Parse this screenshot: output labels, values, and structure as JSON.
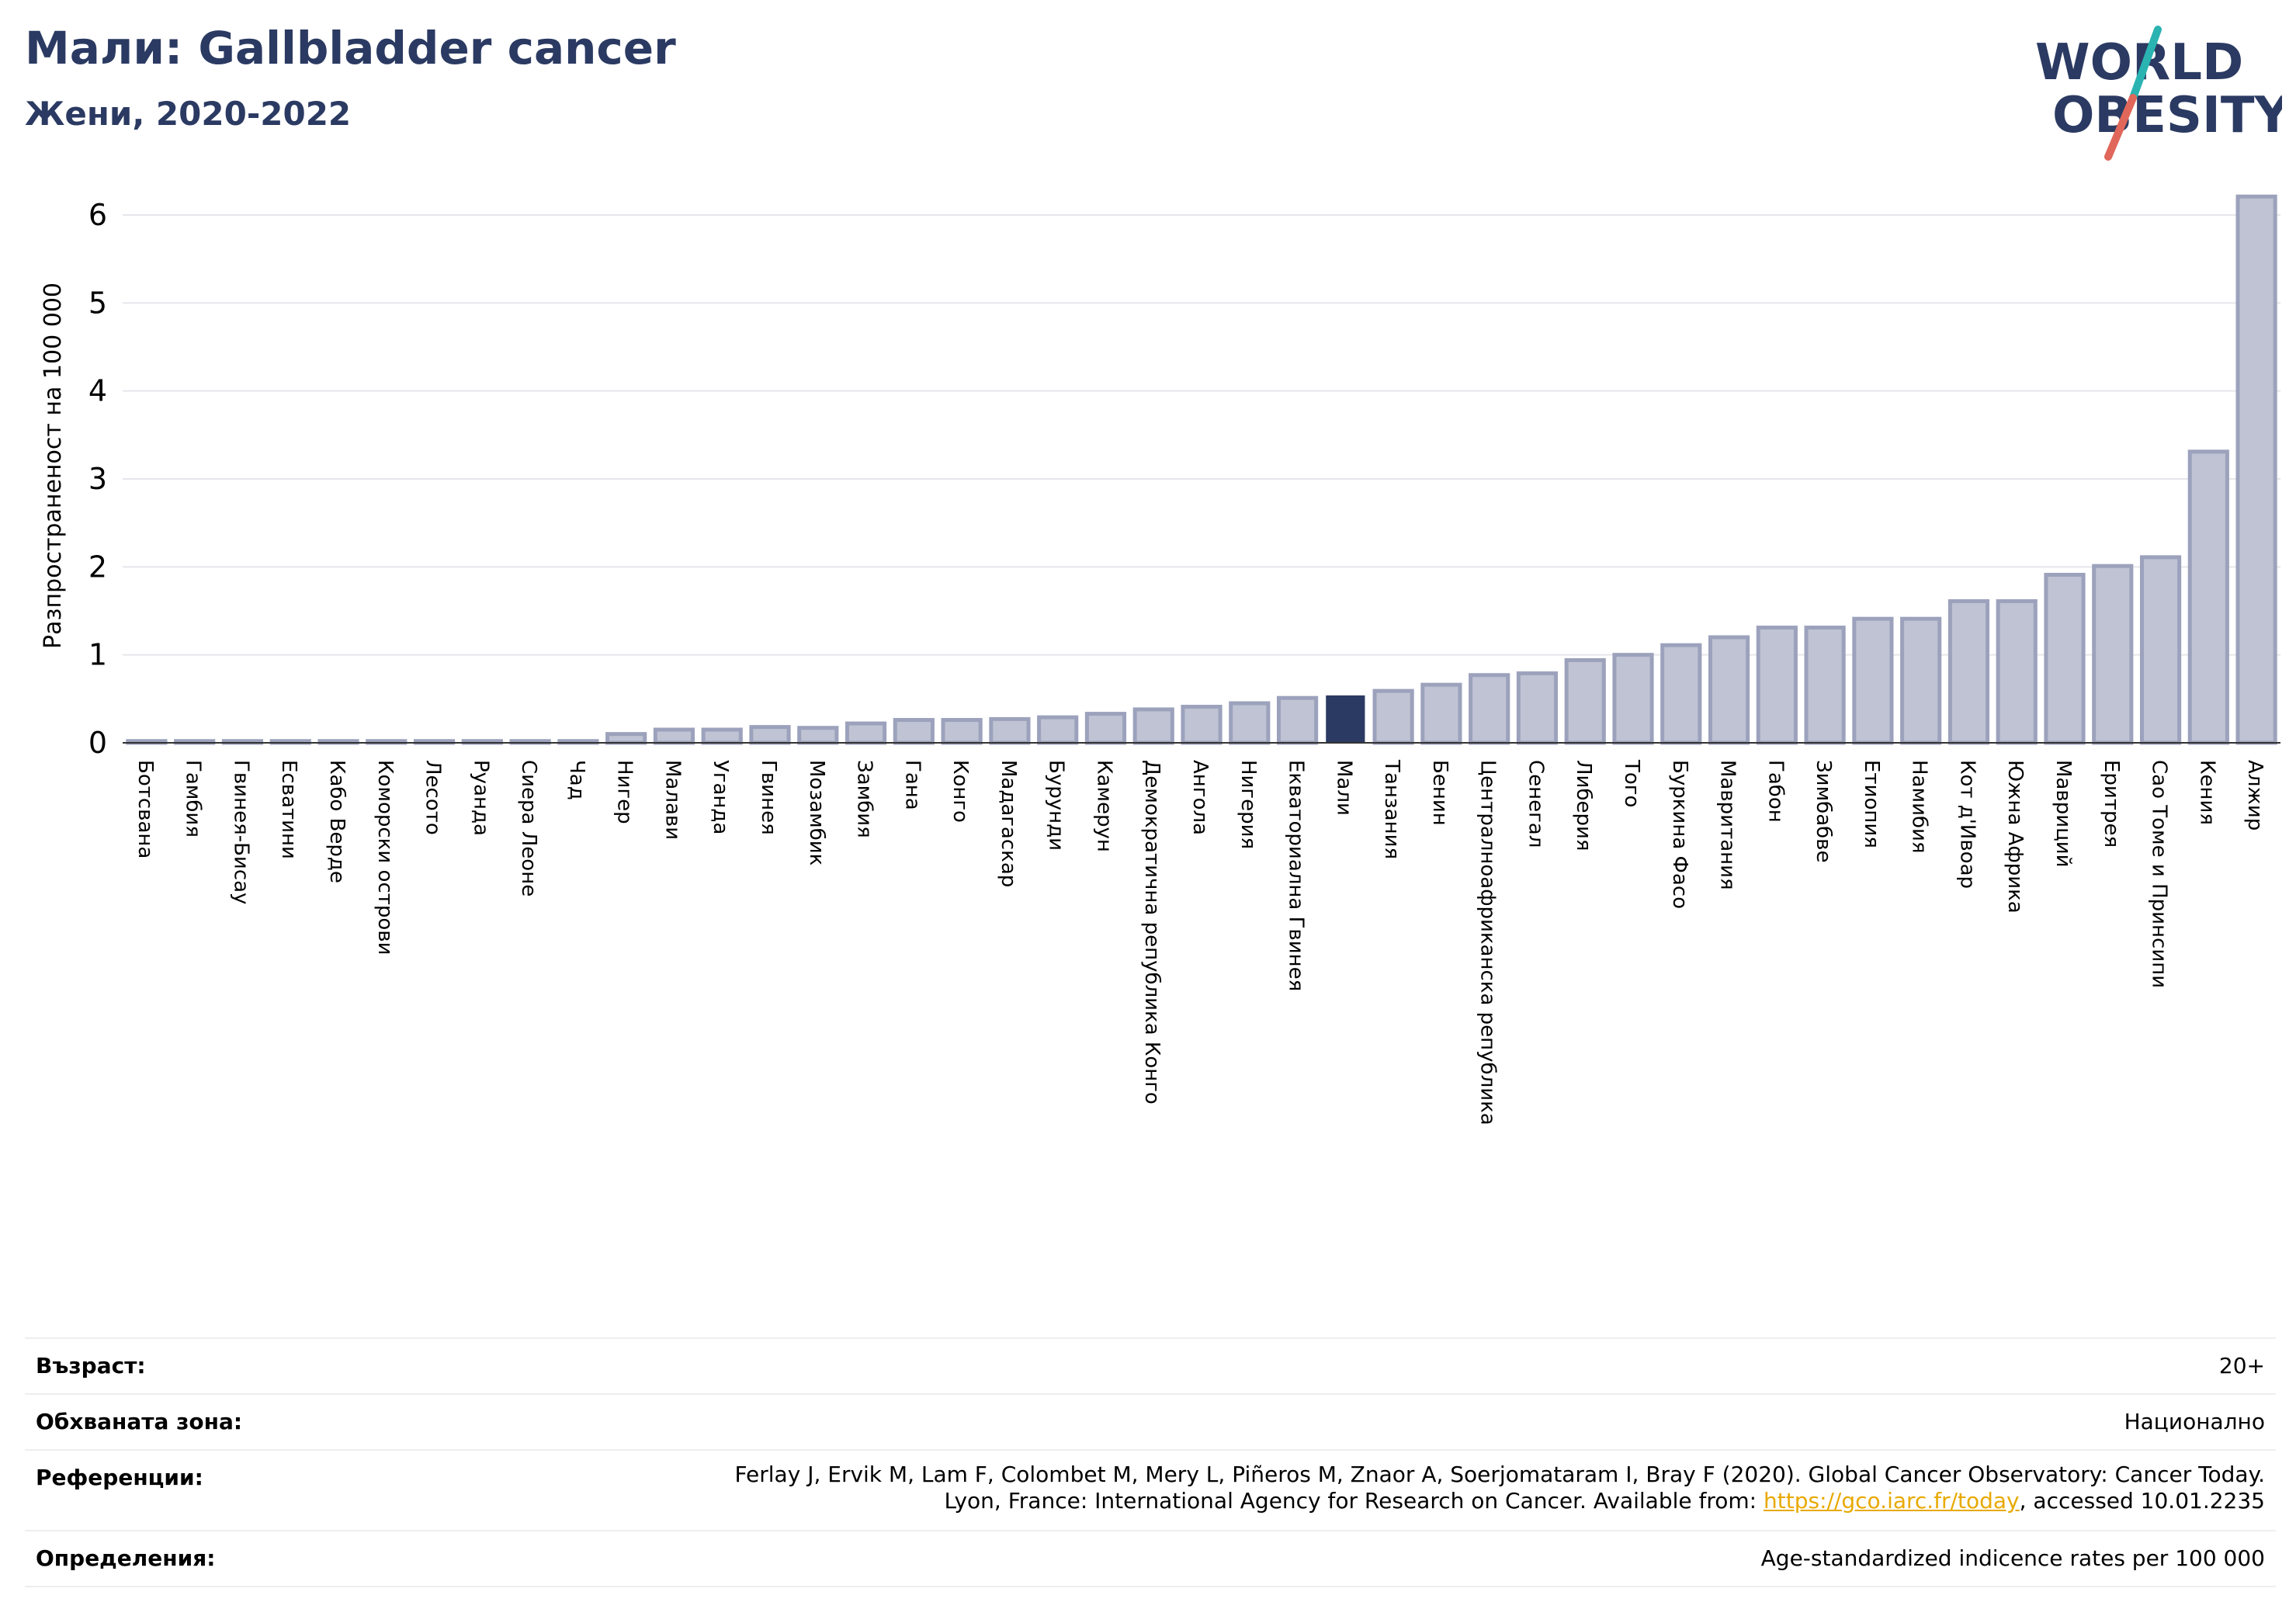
{
  "header": {
    "title": "Мали: Gallbladder cancer",
    "subtitle": "Жени, 2020-2022"
  },
  "logo": {
    "line1": "WORLD",
    "line2": "OBESITY",
    "colors": {
      "text": "#2b3a62",
      "slash_teal": "#2ab3b1",
      "slash_red": "#e0675a"
    }
  },
  "chart_data": {
    "type": "bar",
    "ylabel": "Разпространеност  на 100 000",
    "ylim": [
      0,
      6.3
    ],
    "yticks": [
      0,
      1,
      2,
      3,
      4,
      5,
      6
    ],
    "grid": true,
    "highlight": "Мали",
    "colors": {
      "bar": "#bfc3d3",
      "bar_edge": "#9ca2bc",
      "highlight": "#2b3a62"
    },
    "categories": [
      "Ботсвана",
      "Гамбия",
      "Гвинея-Бисау",
      "Есватини",
      "Кабо Верде",
      "Коморски острови",
      "Лесото",
      "Руанда",
      "Сиера Леоне",
      "Чад",
      "Нигер",
      "Малави",
      "Уганда",
      "Гвинея",
      "Мозамбик",
      "Замбия",
      "Гана",
      "Конго",
      "Мадагаскар",
      "Бурунди",
      "Камерун",
      "Демократична република Конго",
      "Ангола",
      "Нигерия",
      "Екваториална Гвинея",
      "Мали",
      "Танзания",
      "Бенин",
      "Централноафриканска република",
      "Сенегал",
      "Либерия",
      "Того",
      "Буркина Фасо",
      "Мавритания",
      "Габон",
      "Зимбабве",
      "Етиопия",
      "Намибия",
      "Кот д'Ивоар",
      "Южна Африка",
      "Мавриций",
      "Еритрея",
      "Сао Томе и Принсипи",
      "Кения",
      "Алжир"
    ],
    "values": [
      0.02,
      0.02,
      0.02,
      0.02,
      0.02,
      0.02,
      0.02,
      0.02,
      0.02,
      0.02,
      0.1,
      0.15,
      0.15,
      0.18,
      0.17,
      0.22,
      0.26,
      0.26,
      0.27,
      0.29,
      0.33,
      0.38,
      0.41,
      0.45,
      0.51,
      0.53,
      0.59,
      0.66,
      0.77,
      0.79,
      0.94,
      1.0,
      1.11,
      1.2,
      1.31,
      1.31,
      1.41,
      1.41,
      1.61,
      1.61,
      1.91,
      2.01,
      2.11,
      3.31,
      6.21
    ]
  },
  "meta": {
    "age_label": "Възраст:",
    "age_value": "20+",
    "area_label": "Обхваната зона:",
    "area_value": "Национално",
    "refs_label": "Референции:",
    "refs_line1": "Ferlay J, Ervik M, Lam F, Colombet M, Mery L, Piñeros M, Znaor A, Soerjomataram I, Bray F (2020). Global Cancer Observatory: Cancer Today.",
    "refs_line2_pre": "Lyon, France: International Agency for Research on Cancer. Available from: ",
    "refs_link": "https://gco.iarc.fr/today",
    "refs_line2_post": ", accessed 10.01.2235",
    "defs_label": "Определения:",
    "defs_value": "Age-standardized indicence rates per 100 000"
  }
}
